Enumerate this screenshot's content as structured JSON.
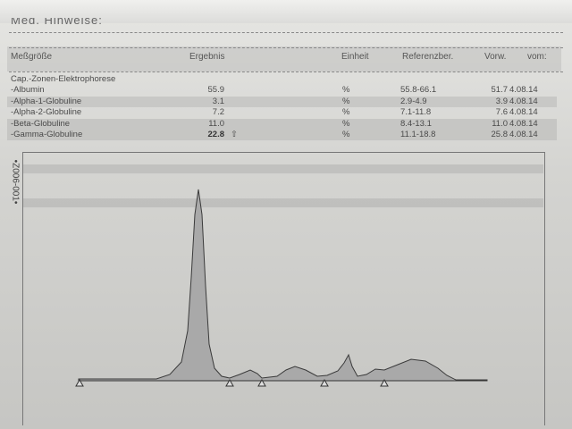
{
  "header_note": "Med. Hinweise:",
  "columns": [
    "Meßgröße",
    "Ergebnis",
    "Einheit",
    "Referenzber.",
    "Vorw.",
    "vom:"
  ],
  "group_title": "Cap.-Zonen-Elektrophorese",
  "rows": [
    {
      "name": "-Albumin",
      "result": "55.9",
      "flag": "",
      "unit": "%",
      "ref": "55.8-66.1",
      "prev": "51.7",
      "date": "4.08.14"
    },
    {
      "name": "-Alpha-1-Globuline",
      "result": "3.1",
      "flag": "",
      "unit": "%",
      "ref": "2.9-4.9",
      "prev": "3.9",
      "date": "4.08.14"
    },
    {
      "name": "-Alpha-2-Globuline",
      "result": "7.2",
      "flag": "",
      "unit": "%",
      "ref": "7.1-11.8",
      "prev": "7.6",
      "date": "4.08.14"
    },
    {
      "name": "-Beta-Globuline",
      "result": "11.0",
      "flag": "",
      "unit": "%",
      "ref": "8.4-13.1",
      "prev": "11.0",
      "date": "4.08.14"
    },
    {
      "name": "-Gamma-Globuline",
      "result": "22.8",
      "flag": "⇧",
      "unit": "%",
      "ref": "11.1-18.8",
      "prev": "25.8",
      "date": "4.08.14"
    }
  ],
  "side_code": "•Z006-001•",
  "colors": {
    "curve_fill": "#a9a9a9",
    "curve_stroke": "#3a3a3a"
  }
}
